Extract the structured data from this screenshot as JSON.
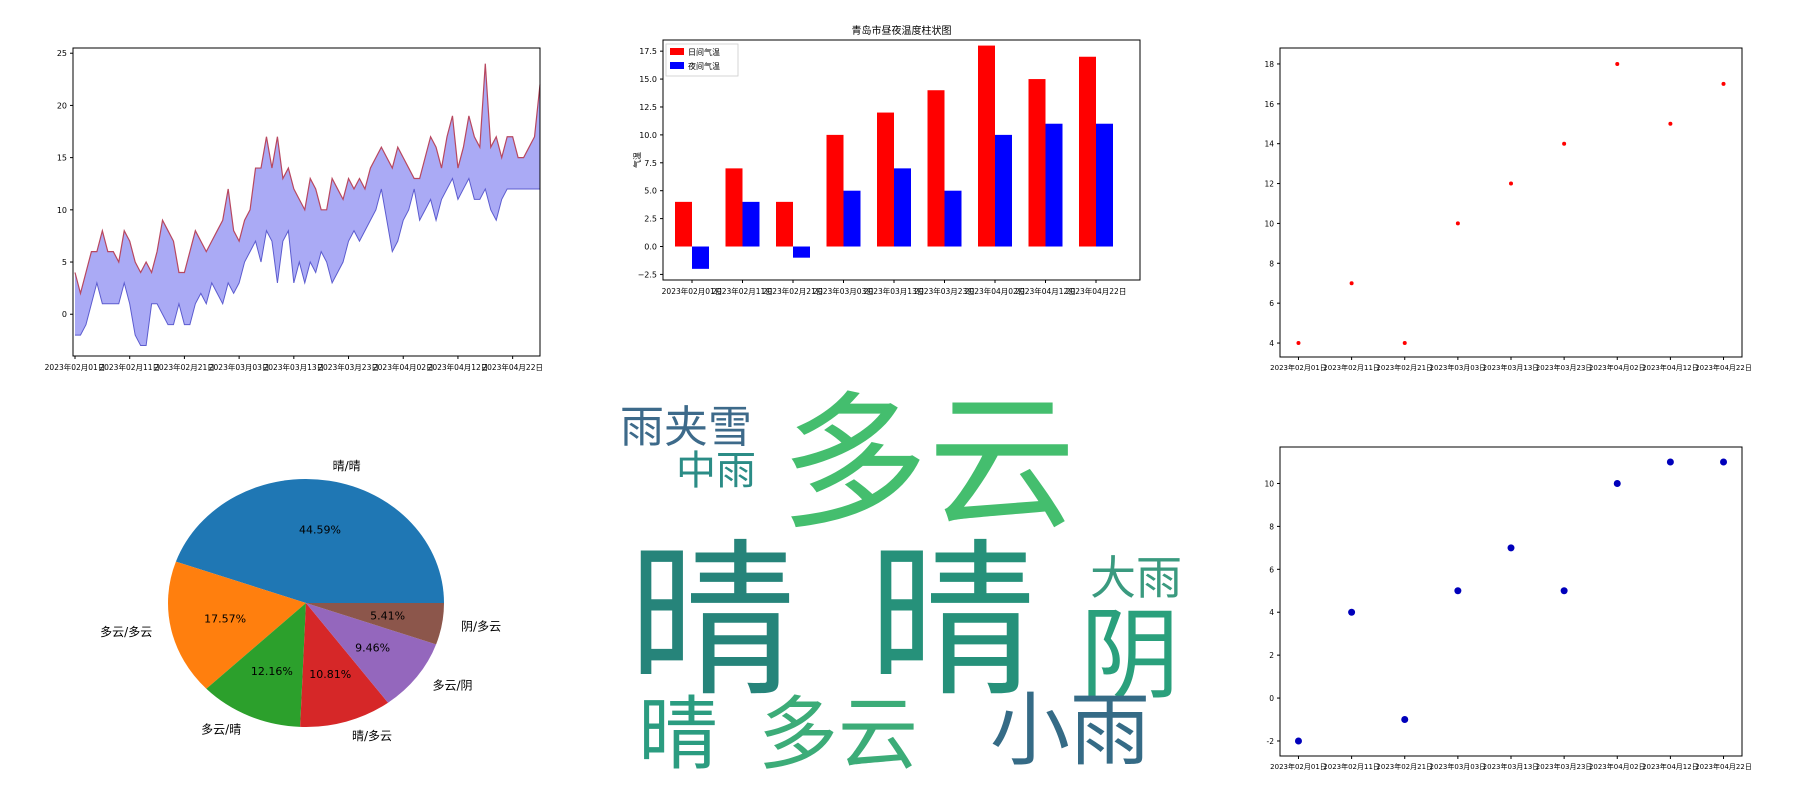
{
  "chart_data": [
    {
      "type": "area",
      "title": "",
      "xlabel": "",
      "ylabel": "",
      "x_tick_labels": [
        "2023年02月01日",
        "2023年02月11日",
        "2023年02月21日",
        "2023年03月03日",
        "2023年03月13日",
        "2023年03月23日",
        "2023年04月02日",
        "2023年04月12日",
        "2023年04月22日"
      ],
      "x_range_days": [
        0,
        85
      ],
      "ylim": [
        -4,
        25.5
      ],
      "y_ticks": [
        0,
        5,
        10,
        15,
        20,
        25
      ],
      "series": [
        {
          "values": [
            4,
            2,
            4,
            6,
            6,
            8,
            6,
            6,
            5,
            8,
            7,
            5,
            4,
            5,
            4,
            6,
            9,
            8,
            7,
            4,
            4,
            6,
            8,
            7,
            6,
            7,
            8,
            9,
            12,
            8,
            7,
            9,
            10,
            14,
            14,
            17,
            14,
            17,
            13,
            14,
            12,
            11,
            10,
            13,
            12,
            10,
            10,
            13,
            12,
            11,
            13,
            12,
            13,
            12,
            14,
            15,
            16,
            15,
            14,
            16,
            15,
            14,
            13,
            13,
            15,
            17,
            16,
            14,
            17,
            19,
            14,
            16,
            19,
            17,
            16,
            24,
            16,
            17,
            15,
            17,
            17,
            15,
            15,
            16,
            17,
            22
          ]
        },
        {
          "values": [
            -2,
            -2,
            -1,
            1,
            3,
            1,
            1,
            1,
            1,
            3,
            1,
            -2,
            -3,
            -3,
            1,
            1,
            0,
            -1,
            -1,
            1,
            -1,
            -1,
            1,
            2,
            1,
            3,
            2,
            1,
            3,
            2,
            3,
            5,
            6,
            7,
            5,
            8,
            7,
            3,
            7,
            8,
            3,
            5,
            3,
            5,
            4,
            6,
            5,
            3,
            4,
            5,
            7,
            8,
            7,
            8,
            9,
            10,
            12,
            9,
            6,
            7,
            9,
            10,
            12,
            9,
            10,
            11,
            9,
            11,
            12,
            13,
            11,
            12,
            13,
            11,
            11,
            12,
            10,
            9,
            11,
            12,
            12,
            12,
            12,
            12,
            12,
            12
          ]
        }
      ],
      "colors": {
        "upper_line": "#b8475f",
        "lower_line": "#5c5ccf",
        "fill": "#aaaaf5"
      }
    },
    {
      "type": "bar",
      "title": "青岛市昼夜温度柱状图",
      "xlabel": "",
      "ylabel": "气温",
      "categories": [
        "2023年02月01日",
        "2023年02月11日",
        "2023年02月21日",
        "2023年03月03日",
        "2023年03月13日",
        "2023年03月23日",
        "2023年04月02日",
        "2023年04月12日",
        "2023年04月22日"
      ],
      "ylim": [
        -3,
        18.5
      ],
      "y_ticks": [
        -2.5,
        0.0,
        2.5,
        5.0,
        7.5,
        10.0,
        12.5,
        15.0,
        17.5
      ],
      "y_tick_labels": [
        "−2.5",
        "0.0",
        "2.5",
        "5.0",
        "7.5",
        "10.0",
        "12.5",
        "15.0",
        "17.5"
      ],
      "legend_position": "top-left",
      "series": [
        {
          "name": "日间气温",
          "color": "#ff0000",
          "values": [
            4,
            7,
            4,
            10,
            12,
            14,
            18,
            15,
            17
          ]
        },
        {
          "name": "夜间气温",
          "color": "#0000ff",
          "values": [
            -2,
            4,
            -1,
            5,
            7,
            5,
            10,
            11,
            11
          ]
        }
      ]
    },
    {
      "type": "scatter",
      "title": "",
      "xlabel": "",
      "ylabel": "",
      "categories": [
        "2023年02月01日",
        "2023年02月11日",
        "2023年02月21日",
        "2023年03月03日",
        "2023年03月13日",
        "2023年03月23日",
        "2023年04月02日",
        "2023年04月12日",
        "2023年04月22日"
      ],
      "values": [
        4,
        7,
        4,
        10,
        12,
        14,
        18,
        15,
        17
      ],
      "ylim": [
        3.3,
        18.8
      ],
      "y_ticks": [
        4,
        6,
        8,
        10,
        12,
        14,
        16,
        18
      ],
      "color": "#ff0000"
    },
    {
      "type": "pie",
      "title": "",
      "slices": [
        {
          "label": "晴/晴",
          "value": 44.59,
          "pct_label": "44.59%",
          "color": "#1f77b4"
        },
        {
          "label": "多云/多云",
          "value": 17.57,
          "pct_label": "17.57%",
          "color": "#ff7f0e"
        },
        {
          "label": "多云/晴",
          "value": 12.16,
          "pct_label": "12.16%",
          "color": "#2ca02c"
        },
        {
          "label": "晴/多云",
          "value": 10.81,
          "pct_label": "10.81%",
          "color": "#d62728"
        },
        {
          "label": "多云/阴",
          "value": 9.46,
          "pct_label": "9.46%",
          "color": "#9467bd"
        },
        {
          "label": "阴/多云",
          "value": 5.41,
          "pct_label": "5.41%",
          "color": "#8c564b"
        }
      ]
    },
    {
      "type": "scatter",
      "title": "",
      "xlabel": "",
      "ylabel": "",
      "categories": [
        "2023年02月01日",
        "2023年02月11日",
        "2023年02月21日",
        "2023年03月03日",
        "2023年03月13日",
        "2023年03月23日",
        "2023年04月02日",
        "2023年04月12日",
        "2023年04月22日"
      ],
      "values": [
        -2,
        4,
        -1,
        5,
        7,
        5,
        10,
        11,
        11
      ],
      "ylim": [
        -2.7,
        11.7
      ],
      "y_ticks": [
        -2,
        0,
        2,
        4,
        6,
        8,
        10
      ],
      "color": "#0000bb"
    }
  ],
  "word_cloud": {
    "words": [
      {
        "text": "雨夹雪",
        "color": "#3d6a8a"
      },
      {
        "text": "中雨",
        "color": "#2b8c86"
      },
      {
        "text": "多云",
        "color": "#44be6e"
      },
      {
        "text": "晴",
        "color": "#26847a"
      },
      {
        "text": "晴",
        "color": "#26917a"
      },
      {
        "text": "大雨",
        "color": "#3a9a7f"
      },
      {
        "text": "阴",
        "color": "#2aa07c"
      },
      {
        "text": "晴",
        "color": "#2b9c80"
      },
      {
        "text": "多云",
        "color": "#3cac78"
      },
      {
        "text": "小雨",
        "color": "#356b86"
      }
    ]
  }
}
